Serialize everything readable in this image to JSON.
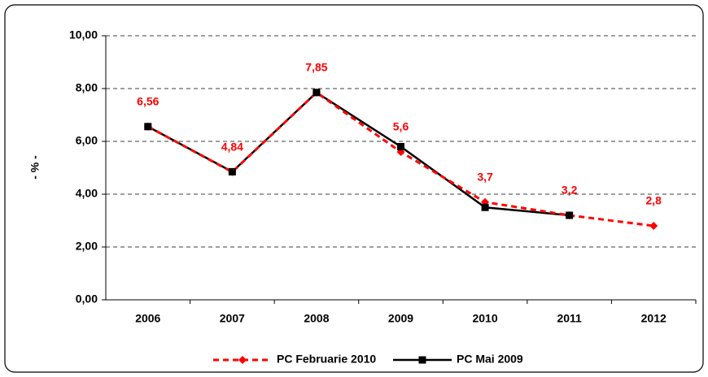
{
  "chart_data": {
    "type": "line",
    "y_label": "- % -",
    "categories": [
      "2006",
      "2007",
      "2008",
      "2009",
      "2010",
      "2011",
      "2012"
    ],
    "series": [
      {
        "name": "PC Februarie 2010",
        "color": "#ff0000",
        "values": [
          6.56,
          4.84,
          7.85,
          5.6,
          3.7,
          3.2,
          2.8
        ],
        "value_labels": [
          "6,56",
          "4,84",
          "7,85",
          "5,6",
          "3,7",
          "3,2",
          "2,8"
        ]
      },
      {
        "name": "PC Mai 2009",
        "color": "#000000",
        "values": [
          6.56,
          4.85,
          7.85,
          5.8,
          3.5,
          3.2,
          null
        ]
      }
    ],
    "ylim": [
      0,
      10
    ],
    "yticks": [
      {
        "value": 0,
        "label": "0,00"
      },
      {
        "value": 2,
        "label": "2,00"
      },
      {
        "value": 4,
        "label": "4,00"
      },
      {
        "value": 6,
        "label": "6,00"
      },
      {
        "value": 8,
        "label": "8,00"
      },
      {
        "value": 10,
        "label": "10,00"
      }
    ],
    "grid": true
  }
}
